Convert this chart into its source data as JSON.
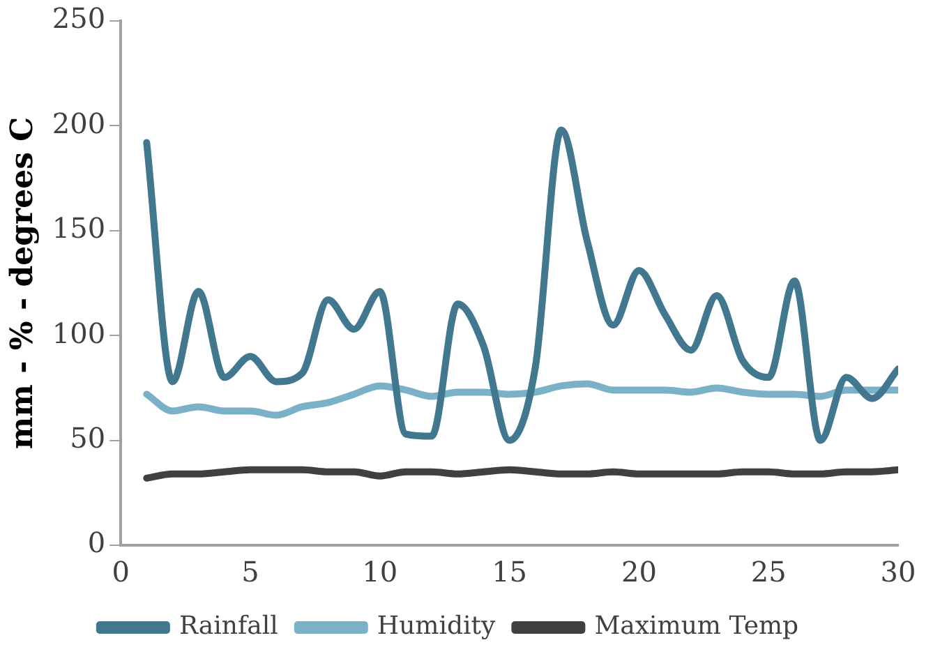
{
  "chart_data": {
    "type": "line",
    "ylabel": "mm - % - degrees C",
    "x": [
      1,
      2,
      3,
      4,
      5,
      6,
      7,
      8,
      9,
      10,
      11,
      12,
      13,
      14,
      15,
      16,
      17,
      18,
      19,
      20,
      21,
      22,
      23,
      24,
      25,
      26,
      27,
      28,
      29,
      30
    ],
    "series": [
      {
        "name": "Rainfall",
        "color": "#41778f",
        "values": [
          192,
          78,
          121,
          80,
          90,
          78,
          82,
          117,
          103,
          121,
          53,
          52,
          115,
          95,
          50,
          85,
          198,
          145,
          105,
          131,
          110,
          93,
          119,
          88,
          80,
          126,
          50,
          80,
          70,
          84
        ]
      },
      {
        "name": "Humidity",
        "color": "#7ab0c8",
        "values": [
          72,
          64,
          66,
          64,
          64,
          62,
          66,
          68,
          72,
          76,
          74,
          71,
          73,
          73,
          72,
          73,
          76,
          77,
          74,
          74,
          74,
          73,
          75,
          73,
          72,
          72,
          71,
          74,
          74,
          74
        ]
      },
      {
        "name": "Maximum Temp",
        "color": "#404040",
        "values": [
          32,
          34,
          34,
          35,
          36,
          36,
          36,
          35,
          35,
          33,
          35,
          35,
          34,
          35,
          36,
          35,
          34,
          34,
          35,
          34,
          34,
          34,
          34,
          35,
          35,
          34,
          34,
          35,
          35,
          36
        ]
      }
    ],
    "xlim": [
      0,
      30
    ],
    "xticks": [
      0,
      5,
      10,
      15,
      20,
      25,
      30
    ],
    "ylim": [
      0,
      250
    ],
    "yticks": [
      0,
      50,
      100,
      150,
      200,
      250
    ],
    "grid": false,
    "legend": "bottom",
    "marker": "none",
    "line_style": "solid"
  }
}
